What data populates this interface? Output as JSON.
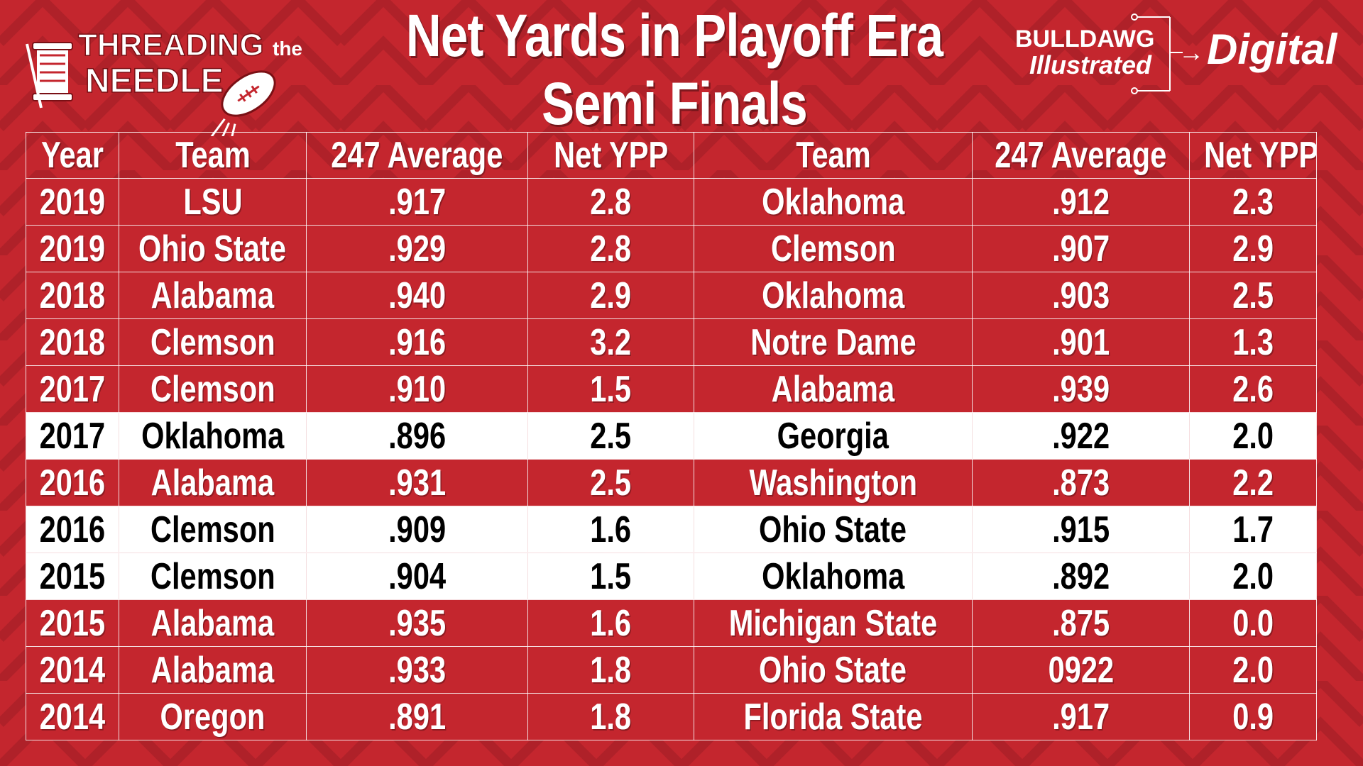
{
  "title": {
    "line1": "Net Yards in Playoff Era",
    "line2": "Semi Finals"
  },
  "logo_left": {
    "word1": "THREADING",
    "word2": "the",
    "word3": "NEEDLE",
    "icon": "football-needle-icon"
  },
  "logo_right": {
    "brand_top": "BULLDAWG",
    "brand_bottom": "Illustrated",
    "digital": "Digital",
    "arrow": "→"
  },
  "colors": {
    "background": "#c4262e",
    "highlight_row": "#ffffff",
    "text_light": "#ffffff",
    "text_dark": "#000000"
  },
  "table": {
    "headers": [
      "Year",
      "Team",
      "247 Average",
      "Net YPP",
      "Team",
      "247 Average",
      "Net YPP"
    ],
    "rows": [
      {
        "year": "2019",
        "team1": "LSU",
        "avg1": ".917",
        "ypp1": "2.8",
        "team2": "Oklahoma",
        "avg2": ".912",
        "ypp2": "2.3",
        "highlight": false
      },
      {
        "year": "2019",
        "team1": "Ohio State",
        "avg1": ".929",
        "ypp1": "2.8",
        "team2": "Clemson",
        "avg2": ".907",
        "ypp2": "2.9",
        "highlight": false
      },
      {
        "year": "2018",
        "team1": "Alabama",
        "avg1": ".940",
        "ypp1": "2.9",
        "team2": "Oklahoma",
        "avg2": ".903",
        "ypp2": "2.5",
        "highlight": false
      },
      {
        "year": "2018",
        "team1": "Clemson",
        "avg1": ".916",
        "ypp1": "3.2",
        "team2": "Notre Dame",
        "avg2": ".901",
        "ypp2": "1.3",
        "highlight": false
      },
      {
        "year": "2017",
        "team1": "Clemson",
        "avg1": ".910",
        "ypp1": "1.5",
        "team2": "Alabama",
        "avg2": ".939",
        "ypp2": "2.6",
        "highlight": false
      },
      {
        "year": "2017",
        "team1": "Oklahoma",
        "avg1": ".896",
        "ypp1": "2.5",
        "team2": "Georgia",
        "avg2": ".922",
        "ypp2": "2.0",
        "highlight": true
      },
      {
        "year": "2016",
        "team1": "Alabama",
        "avg1": ".931",
        "ypp1": "2.5",
        "team2": "Washington",
        "avg2": ".873",
        "ypp2": "2.2",
        "highlight": false
      },
      {
        "year": "2016",
        "team1": "Clemson",
        "avg1": ".909",
        "ypp1": "1.6",
        "team2": "Ohio State",
        "avg2": ".915",
        "ypp2": "1.7",
        "highlight": true
      },
      {
        "year": "2015",
        "team1": "Clemson",
        "avg1": ".904",
        "ypp1": "1.5",
        "team2": "Oklahoma",
        "avg2": ".892",
        "ypp2": "2.0",
        "highlight": true
      },
      {
        "year": "2015",
        "team1": "Alabama",
        "avg1": ".935",
        "ypp1": "1.6",
        "team2": "Michigan State",
        "avg2": ".875",
        "ypp2": "0.0",
        "highlight": false
      },
      {
        "year": "2014",
        "team1": "Alabama",
        "avg1": ".933",
        "ypp1": "1.8",
        "team2": "Ohio State",
        "avg2": "0922",
        "ypp2": "2.0",
        "highlight": false
      },
      {
        "year": "2014",
        "team1": "Oregon",
        "avg1": ".891",
        "ypp1": "1.8",
        "team2": "Florida State",
        "avg2": ".917",
        "ypp2": "0.9",
        "highlight": false
      }
    ]
  }
}
